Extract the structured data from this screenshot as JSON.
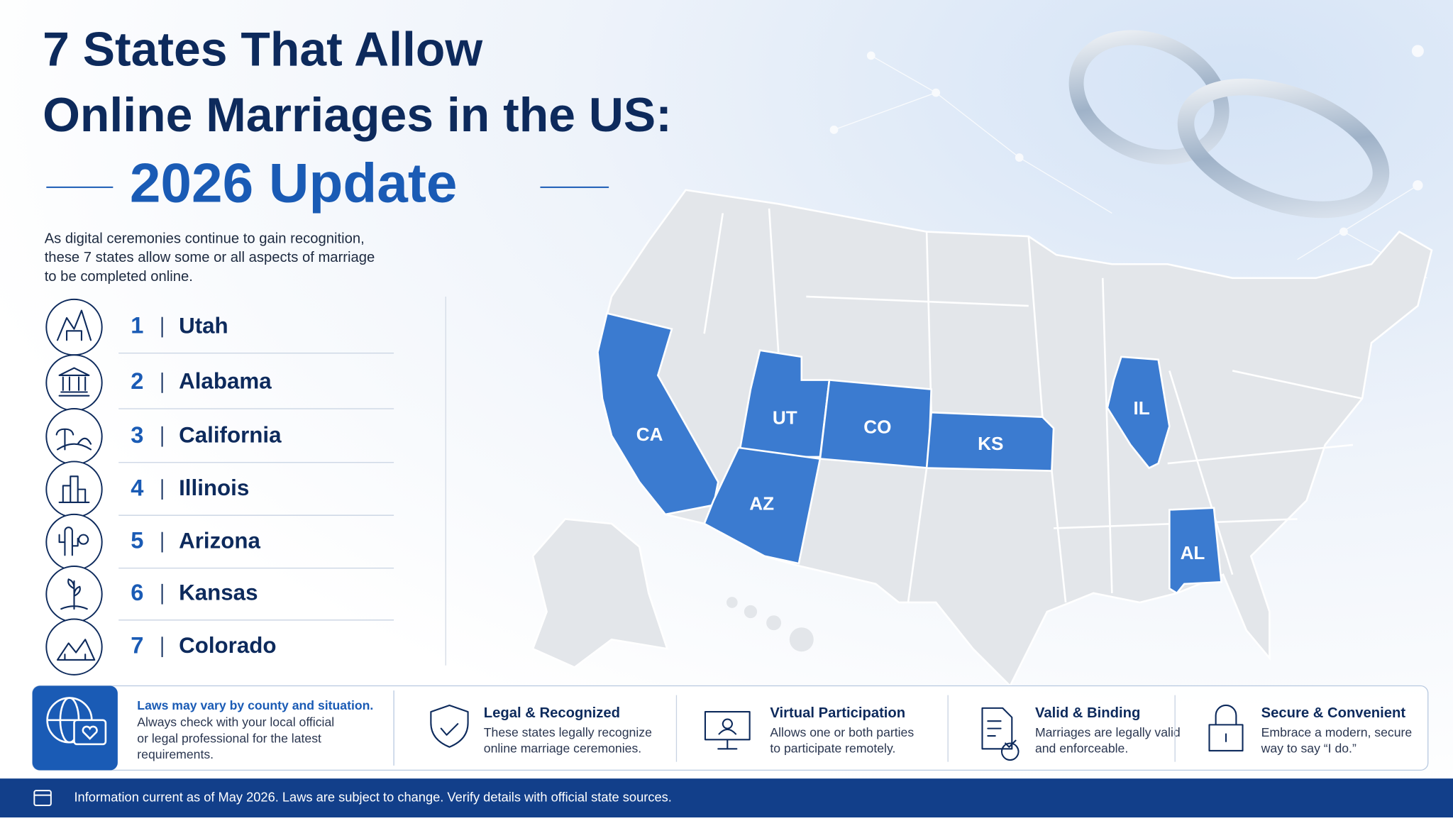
{
  "header": {
    "title_lines": [
      "7 States That Allow",
      "Online Marriages in the US:"
    ],
    "update": "2026 Update",
    "intro_lines": [
      "As digital ceremonies continue to gain recognition,",
      "these 7 states allow some or all aspects of marriage",
      "to be completed online."
    ]
  },
  "states": [
    {
      "rank": 1,
      "name": "Utah"
    },
    {
      "rank": 2,
      "name": "Alabama"
    },
    {
      "rank": 3,
      "name": "California"
    },
    {
      "rank": 4,
      "name": "Illinois"
    },
    {
      "rank": 5,
      "name": "Arizona"
    },
    {
      "rank": 6,
      "name": "Kansas"
    },
    {
      "rank": 7,
      "name": "Colorado"
    }
  ],
  "map": {
    "labels": [
      "CA",
      "UT",
      "CO",
      "KS",
      "AZ",
      "IL",
      "AL"
    ]
  },
  "notice": {
    "title": "Laws may vary by county and situation.",
    "lines": [
      "Always check with your local official",
      "or legal professional for the latest",
      "requirements."
    ]
  },
  "features": [
    {
      "title": "Legal & Recognized",
      "lines": [
        "These states legally recognize",
        "online marriage ceremonies."
      ]
    },
    {
      "title": "Virtual Participation",
      "lines": [
        "Allows one or both parties",
        "to participate remotely."
      ]
    },
    {
      "title": "Valid & Binding",
      "lines": [
        "Marriages are legally valid",
        "and enforceable."
      ]
    },
    {
      "title": "Secure & Convenient",
      "lines": [
        "Embrace a modern, secure",
        "way to say “I do.”"
      ]
    }
  ],
  "footer": "Information current as of May 2026. Laws are subject to change. Verify details with official state sources."
}
